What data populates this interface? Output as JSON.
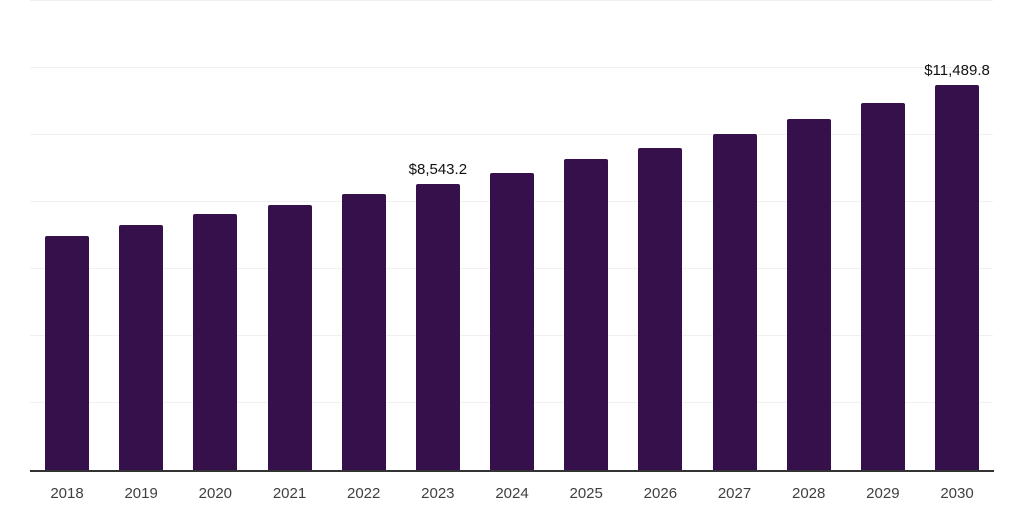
{
  "chart_data": {
    "type": "bar",
    "categories": [
      "2018",
      "2019",
      "2020",
      "2021",
      "2022",
      "2023",
      "2024",
      "2025",
      "2026",
      "2027",
      "2028",
      "2029",
      "2030"
    ],
    "values": [
      7000,
      7320,
      7655,
      7905,
      8250,
      8543.2,
      8870,
      9270,
      9620,
      10045,
      10480,
      10970,
      11489.8
    ],
    "data_labels": [
      "",
      "",
      "",
      "",
      "",
      "$8,543.2",
      "",
      "",
      "",
      "",
      "",
      "",
      "$11,489.8"
    ],
    "title": "",
    "xlabel": "",
    "ylabel": "",
    "ylim": [
      0,
      14000
    ],
    "grid": true,
    "gridline_step": 2000,
    "legend": "none",
    "colors": {
      "bar": "#35104b",
      "axis": "#333333",
      "gridline": "#f0f0f0",
      "data_label": "#111111",
      "tick_label": "#404040"
    }
  }
}
